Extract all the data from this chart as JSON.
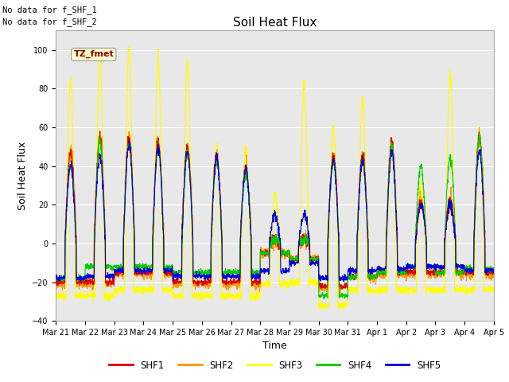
{
  "title": "Soil Heat Flux",
  "ylabel": "Soil Heat Flux",
  "xlabel": "Time",
  "ylim": [
    -40,
    110
  ],
  "yticks": [
    -40,
    -20,
    0,
    20,
    40,
    60,
    80,
    100
  ],
  "top_text_1": "No data for f_SHF_1",
  "top_text_2": "No data for f_SHF_2",
  "tz_label": "TZ_fmet",
  "xtick_labels": [
    "Mar 21",
    "Mar 22",
    "Mar 23",
    "Mar 24",
    "Mar 25",
    "Mar 26",
    "Mar 27",
    "Mar 28",
    "Mar 29",
    "Mar 30",
    "Mar 31",
    "Apr 1",
    "Apr 2",
    "Apr 3",
    "Apr 4",
    "Apr 5"
  ],
  "color_SHF1": "#dd0000",
  "color_SHF2": "#ff9900",
  "color_SHF3": "#ffff00",
  "color_SHF4": "#00cc00",
  "color_SHF5": "#0000dd",
  "legend_colors": [
    "#dd0000",
    "#ff9900",
    "#ffff00",
    "#00cc00",
    "#0000dd"
  ],
  "legend_labels": [
    "SHF1",
    "SHF2",
    "SHF3",
    "SHF4",
    "SHF5"
  ],
  "background_color": "#ffffff",
  "plot_bg_color": "#e8e8e8",
  "grid_color": "#ffffff",
  "n_days": 15,
  "points_per_day": 144
}
